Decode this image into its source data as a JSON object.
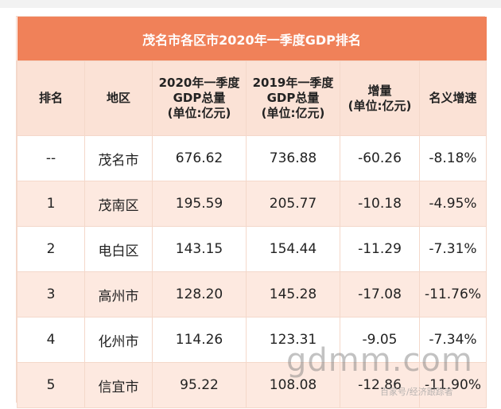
{
  "title": "茂名市各区市2020年一季度GDP排名",
  "headers": {
    "rank": "排名",
    "region": "地区",
    "gdp_2020_line1": "2020年一季度",
    "gdp_2020_line2": "GDP总量",
    "gdp_2020_line3": "(单位:亿元)",
    "gdp_2019_line1": "2019年一季度",
    "gdp_2019_line2": "GDP总量",
    "gdp_2019_line3": "(单位:亿元)",
    "increase_line1": "增量",
    "increase_line2": "(单位:亿元)",
    "nominal_growth": "名义增速"
  },
  "rows": [
    {
      "rank": "--",
      "region": "茂名市",
      "gdp_2020": "676.62",
      "gdp_2019": "736.88",
      "increase": "-60.26",
      "growth": "-8.18%"
    },
    {
      "rank": "1",
      "region": "茂南区",
      "gdp_2020": "195.59",
      "gdp_2019": "205.77",
      "increase": "-10.18",
      "growth": "-4.95%"
    },
    {
      "rank": "2",
      "region": "电白区",
      "gdp_2020": "143.15",
      "gdp_2019": "154.44",
      "increase": "-11.29",
      "growth": "-7.31%"
    },
    {
      "rank": "3",
      "region": "高州市",
      "gdp_2020": "128.20",
      "gdp_2019": "145.28",
      "increase": "-17.08",
      "growth": "-11.76%"
    },
    {
      "rank": "4",
      "region": "化州市",
      "gdp_2020": "114.26",
      "gdp_2019": "123.31",
      "increase": "-9.05",
      "growth": "-7.34%"
    },
    {
      "rank": "5",
      "region": "信宜市",
      "gdp_2020": "95.22",
      "gdp_2019": "108.08",
      "increase": "-12.86",
      "growth": "-11.90%"
    }
  ],
  "watermark": "gdmm.com",
  "source_mark": "百家号/经济跟踪者",
  "colors": {
    "title_bg": "#f08159",
    "header_bg": "#fbe2d6",
    "shade_row_bg": "#fde9e0",
    "border": "#f4d8ca"
  }
}
